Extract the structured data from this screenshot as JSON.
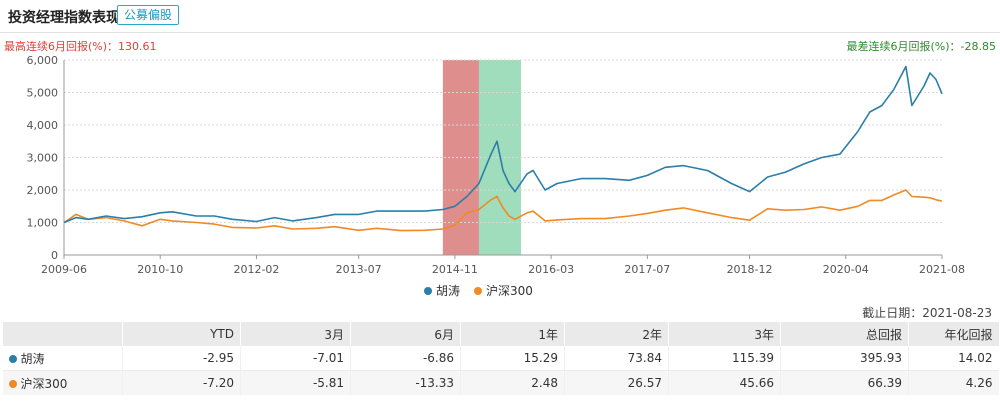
{
  "header": {
    "title": "投资经理指数表现",
    "badge": "公募偏股"
  },
  "stats": {
    "best": "最高连续6月回报(%)：130.61",
    "worst": "最差连续6月回报(%)：-28.85"
  },
  "colors": {
    "manager": "#2b7ea8",
    "index": "#f08a24",
    "best_band": "#d97a7a",
    "worst_band": "#7fd1a6"
  },
  "chart_data": {
    "type": "line",
    "x_start": "2009-06",
    "x_end": "2021-08",
    "x_ticks": [
      "2009-06",
      "2010-10",
      "2012-02",
      "2013-07",
      "2014-11",
      "2016-03",
      "2017-07",
      "2018-12",
      "2020-04",
      "2021-08"
    ],
    "y_ticks": [
      "0",
      "1,000",
      "2,000",
      "3,000",
      "4,000",
      "5,000",
      "6,000"
    ],
    "ylim": [
      0,
      6000
    ],
    "bands": [
      {
        "label": "best",
        "start": "2014-09",
        "end": "2015-03"
      },
      {
        "label": "worst",
        "start": "2015-03",
        "end": "2015-10"
      }
    ],
    "series": [
      {
        "name": "胡涛",
        "points": [
          [
            "2009-06",
            1000
          ],
          [
            "2009-08",
            1150
          ],
          [
            "2009-10",
            1100
          ],
          [
            "2010-01",
            1200
          ],
          [
            "2010-04",
            1120
          ],
          [
            "2010-07",
            1180
          ],
          [
            "2010-10",
            1300
          ],
          [
            "2010-12",
            1330
          ],
          [
            "2011-04",
            1200
          ],
          [
            "2011-07",
            1200
          ],
          [
            "2011-10",
            1100
          ],
          [
            "2012-02",
            1030
          ],
          [
            "2012-05",
            1150
          ],
          [
            "2012-08",
            1050
          ],
          [
            "2012-12",
            1150
          ],
          [
            "2013-03",
            1250
          ],
          [
            "2013-07",
            1250
          ],
          [
            "2013-10",
            1350
          ],
          [
            "2014-02",
            1350
          ],
          [
            "2014-06",
            1350
          ],
          [
            "2014-09",
            1400
          ],
          [
            "2014-11",
            1500
          ],
          [
            "2015-01",
            1800
          ],
          [
            "2015-03",
            2200
          ],
          [
            "2015-05",
            3100
          ],
          [
            "2015-06",
            3500
          ],
          [
            "2015-07",
            2600
          ],
          [
            "2015-08",
            2200
          ],
          [
            "2015-09",
            1950
          ],
          [
            "2015-11",
            2500
          ],
          [
            "2015-12",
            2600
          ],
          [
            "2016-02",
            2000
          ],
          [
            "2016-04",
            2200
          ],
          [
            "2016-08",
            2350
          ],
          [
            "2016-12",
            2350
          ],
          [
            "2017-04",
            2300
          ],
          [
            "2017-07",
            2450
          ],
          [
            "2017-10",
            2700
          ],
          [
            "2018-01",
            2750
          ],
          [
            "2018-05",
            2600
          ],
          [
            "2018-09",
            2200
          ],
          [
            "2018-12",
            1950
          ],
          [
            "2019-03",
            2400
          ],
          [
            "2019-06",
            2550
          ],
          [
            "2019-09",
            2800
          ],
          [
            "2019-12",
            3000
          ],
          [
            "2020-03",
            3100
          ],
          [
            "2020-06",
            3800
          ],
          [
            "2020-08",
            4400
          ],
          [
            "2020-10",
            4600
          ],
          [
            "2020-12",
            5100
          ],
          [
            "2021-02",
            5800
          ],
          [
            "2021-03",
            4600
          ],
          [
            "2021-05",
            5200
          ],
          [
            "2021-06",
            5600
          ],
          [
            "2021-07",
            5400
          ],
          [
            "2021-08",
            4960
          ]
        ]
      },
      {
        "name": "沪深300",
        "points": [
          [
            "2009-06",
            1000
          ],
          [
            "2009-08",
            1250
          ],
          [
            "2009-10",
            1100
          ],
          [
            "2010-01",
            1150
          ],
          [
            "2010-04",
            1050
          ],
          [
            "2010-07",
            900
          ],
          [
            "2010-10",
            1100
          ],
          [
            "2010-12",
            1050
          ],
          [
            "2011-04",
            1000
          ],
          [
            "2011-07",
            950
          ],
          [
            "2011-10",
            850
          ],
          [
            "2012-02",
            830
          ],
          [
            "2012-05",
            900
          ],
          [
            "2012-08",
            800
          ],
          [
            "2012-12",
            820
          ],
          [
            "2013-03",
            870
          ],
          [
            "2013-07",
            760
          ],
          [
            "2013-10",
            820
          ],
          [
            "2014-02",
            750
          ],
          [
            "2014-06",
            760
          ],
          [
            "2014-09",
            800
          ],
          [
            "2014-11",
            920
          ],
          [
            "2015-01",
            1300
          ],
          [
            "2015-03",
            1400
          ],
          [
            "2015-05",
            1700
          ],
          [
            "2015-06",
            1800
          ],
          [
            "2015-07",
            1450
          ],
          [
            "2015-08",
            1200
          ],
          [
            "2015-09",
            1100
          ],
          [
            "2015-11",
            1300
          ],
          [
            "2015-12",
            1350
          ],
          [
            "2016-02",
            1050
          ],
          [
            "2016-04",
            1080
          ],
          [
            "2016-08",
            1120
          ],
          [
            "2016-12",
            1120
          ],
          [
            "2017-04",
            1200
          ],
          [
            "2017-07",
            1280
          ],
          [
            "2017-10",
            1380
          ],
          [
            "2018-01",
            1450
          ],
          [
            "2018-05",
            1300
          ],
          [
            "2018-09",
            1150
          ],
          [
            "2018-12",
            1070
          ],
          [
            "2019-03",
            1420
          ],
          [
            "2019-06",
            1380
          ],
          [
            "2019-09",
            1400
          ],
          [
            "2019-12",
            1480
          ],
          [
            "2020-03",
            1380
          ],
          [
            "2020-06",
            1500
          ],
          [
            "2020-08",
            1680
          ],
          [
            "2020-10",
            1680
          ],
          [
            "2020-12",
            1850
          ],
          [
            "2021-02",
            2000
          ],
          [
            "2021-03",
            1800
          ],
          [
            "2021-05",
            1780
          ],
          [
            "2021-06",
            1760
          ],
          [
            "2021-07",
            1700
          ],
          [
            "2021-08",
            1660
          ]
        ]
      }
    ]
  },
  "legend": {
    "manager": "胡涛",
    "index": "沪深300"
  },
  "date_note": "截止日期：2021-08-23",
  "table": {
    "headers": [
      "",
      "YTD",
      "3月",
      "6月",
      "1年",
      "2年",
      "3年",
      "总回报",
      "年化回报"
    ],
    "rows": [
      {
        "name": "胡涛",
        "values": [
          "-2.95",
          "-7.01",
          "-6.86",
          "15.29",
          "73.84",
          "115.39",
          "395.93",
          "14.02"
        ]
      },
      {
        "name": "沪深300",
        "values": [
          "-7.20",
          "-5.81",
          "-13.33",
          "2.48",
          "26.57",
          "45.66",
          "66.39",
          "4.26"
        ]
      }
    ]
  }
}
